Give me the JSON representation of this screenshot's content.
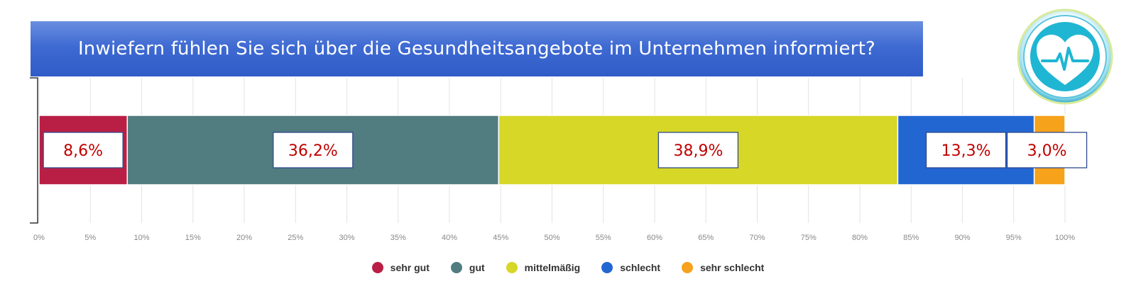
{
  "title": "Inwiefern fühlen Sie sich über die Gesundheitsangebote im Unternehmen informiert?",
  "logo": {
    "icon": "heart-pulse-icon",
    "color": "#1fb6d3"
  },
  "chart_data": {
    "type": "bar",
    "orientation": "horizontal",
    "stacked": true,
    "percent_scale": true,
    "categories": [
      ""
    ],
    "series": [
      {
        "name": "sehr gut",
        "values": [
          8.6
        ],
        "label": "8,6%",
        "color": "#b91f45"
      },
      {
        "name": "gut",
        "values": [
          36.2
        ],
        "label": "36,2%",
        "color": "#517c80"
      },
      {
        "name": "mittelmäßig",
        "values": [
          38.9
        ],
        "label": "38,9%",
        "color": "#d6d726"
      },
      {
        "name": "schlecht",
        "values": [
          13.3
        ],
        "label": "13,3%",
        "color": "#2266d2"
      },
      {
        "name": "sehr schlecht",
        "values": [
          3.0
        ],
        "label": "3,0%",
        "color": "#f7a21b"
      }
    ],
    "xlim": [
      0,
      100
    ],
    "xticks": [
      "0%",
      "5%",
      "10%",
      "15%",
      "20%",
      "25%",
      "30%",
      "35%",
      "40%",
      "45%",
      "50%",
      "55%",
      "60%",
      "65%",
      "70%",
      "75%",
      "80%",
      "85%",
      "90%",
      "95%",
      "100%"
    ],
    "grid": true,
    "legend_position": "bottom",
    "label_color": "#c00000"
  }
}
